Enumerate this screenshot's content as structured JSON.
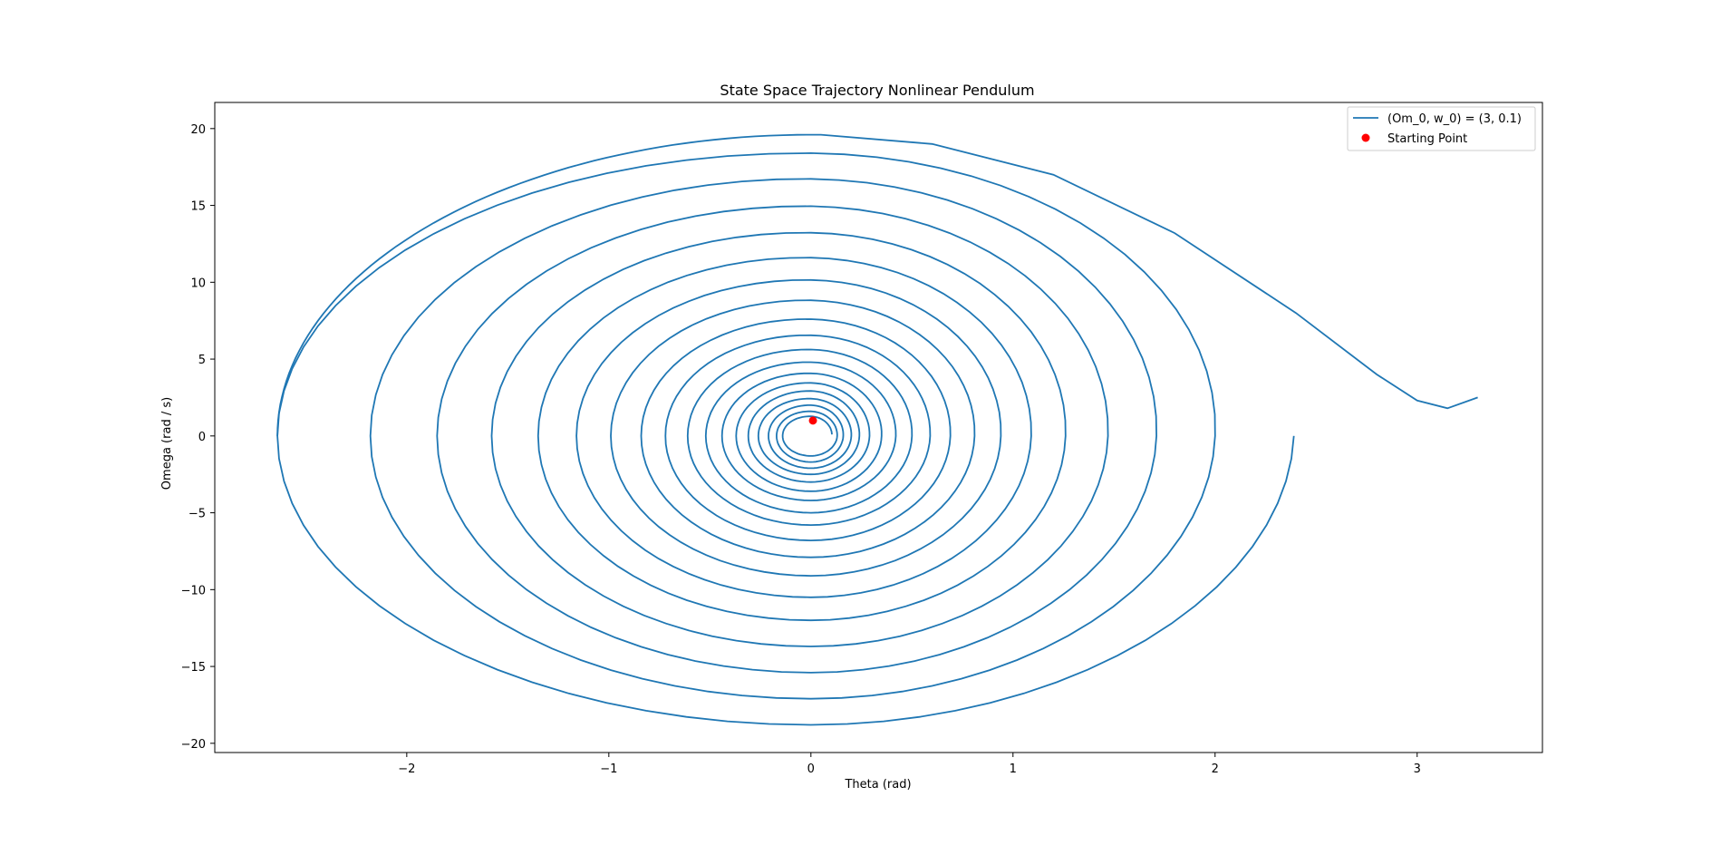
{
  "chart_data": {
    "type": "line",
    "title": "State Space Trajectory Nonlinear Pendulum",
    "xlabel": "Theta (rad)",
    "ylabel": "Omega (rad / s)",
    "xlim": [
      -2.95,
      3.62
    ],
    "ylim": [
      -20.6,
      21.7
    ],
    "xticks": [
      -2,
      -1,
      0,
      1,
      2,
      3
    ],
    "yticks": [
      -20,
      -15,
      -10,
      -5,
      0,
      5,
      10,
      15,
      20
    ],
    "xtick_labels": [
      "−2",
      "−1",
      "0",
      "1",
      "2",
      "3"
    ],
    "ytick_labels": [
      "−20",
      "−15",
      "−10",
      "−5",
      "0",
      "5",
      "10",
      "15",
      "20"
    ],
    "grid": false,
    "legend_position": "top-right",
    "series": [
      {
        "name": "(Om_0, w_0) = (3, 0.1)",
        "kind": "line",
        "color": "#1f77b4",
        "spiral_center": [
          0.0,
          0.0
        ],
        "spiral_right_extents": [
          2.39,
          2.0,
          1.71,
          1.47,
          1.26,
          1.09,
          0.94,
          0.81,
          0.69,
          0.59,
          0.5,
          0.42,
          0.35,
          0.29,
          0.24,
          0.2,
          0.16,
          0.13
        ],
        "spiral_top_extents": [
          19.6,
          18.0,
          16.3,
          14.5,
          12.8,
          11.2,
          9.8,
          8.5,
          7.3,
          6.3,
          5.4,
          4.6,
          3.9,
          3.3,
          2.8,
          2.3,
          1.9,
          1.5
        ],
        "spiral_left_extents": [
          -2.64,
          -2.18,
          -1.85,
          -1.58,
          -1.35,
          -1.16,
          -0.99,
          -0.84,
          -0.72,
          -0.61,
          -0.52,
          -0.44,
          -0.37,
          -0.31,
          -0.26,
          -0.21,
          -0.17,
          -0.14
        ],
        "spiral_bottom_extents": [
          -18.8,
          -17.1,
          -15.4,
          -13.7,
          -12.0,
          -10.5,
          -9.1,
          -7.9,
          -6.8,
          -5.8,
          -5.0,
          -4.2,
          -3.6,
          -3.0,
          -2.5,
          -2.1,
          -1.7,
          -1.3
        ],
        "tail_points": [
          [
            2.39,
            0.0
          ],
          [
            2.3,
            3.2
          ],
          [
            2.1,
            6.5
          ],
          [
            1.8,
            10.0
          ],
          [
            1.4,
            13.2
          ],
          [
            1.0,
            15.8
          ],
          [
            0.6,
            17.8
          ],
          [
            0.2,
            18.9
          ],
          [
            0.02,
            19.2
          ]
        ],
        "end_branch_points": [
          [
            0.05,
            19.6
          ],
          [
            0.6,
            19.0
          ],
          [
            1.2,
            17.0
          ],
          [
            1.8,
            13.2
          ],
          [
            2.4,
            8.0
          ],
          [
            2.8,
            4.0
          ],
          [
            3.0,
            2.3
          ],
          [
            3.15,
            1.8
          ],
          [
            3.3,
            2.5
          ]
        ]
      },
      {
        "name": "Starting Point",
        "kind": "scatter",
        "color": "#ff0000",
        "points": [
          [
            0.01,
            1.0
          ]
        ]
      }
    ]
  }
}
